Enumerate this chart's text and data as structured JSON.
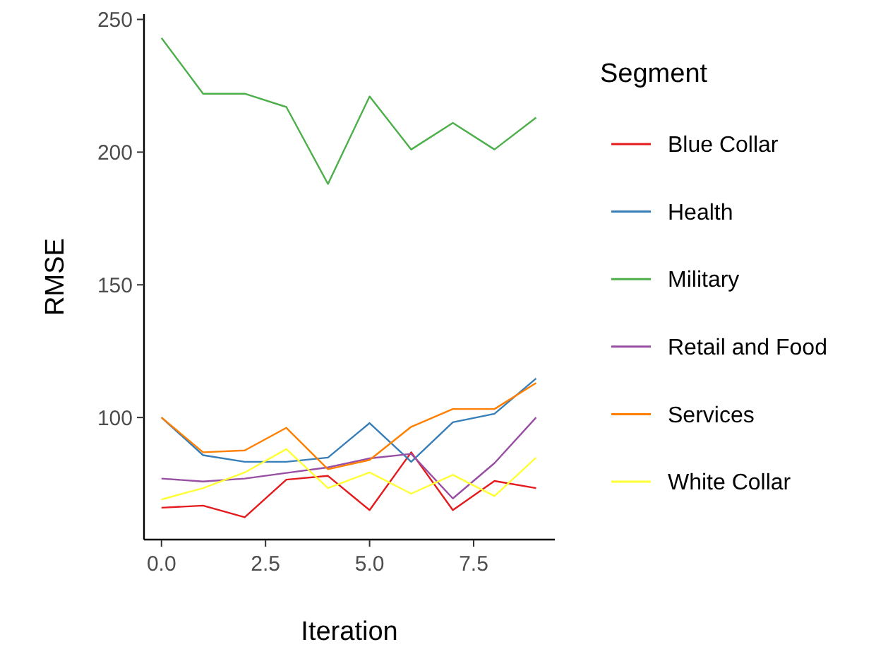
{
  "chart_data": {
    "type": "line",
    "xlabel": "Iteration",
    "ylabel": "RMSE",
    "legend_title": "Segment",
    "legend": "right",
    "grid": false,
    "marker": "none",
    "line_style": "solid",
    "x": [
      0,
      1,
      2,
      3,
      4,
      5,
      6,
      7,
      8,
      9
    ],
    "xlim": [
      -0.42,
      9.45
    ],
    "xticks": [
      {
        "value": 0,
        "label": "0.0"
      },
      {
        "value": 2.5,
        "label": "2.5"
      },
      {
        "value": 5,
        "label": "5.0"
      },
      {
        "value": 7.5,
        "label": "7.5"
      }
    ],
    "ylim": [
      54,
      252
    ],
    "yticks": [
      100,
      150,
      200,
      250
    ],
    "series": [
      {
        "name": "Blue Collar",
        "color": "#e41a1c",
        "values": [
          66,
          66.8,
          62.4,
          76.6,
          78,
          65.1,
          86.9,
          65.1,
          76.1,
          73.4
        ]
      },
      {
        "name": "Health",
        "color": "#377eb8",
        "values": [
          100,
          85.8,
          83.3,
          83.3,
          84.9,
          97.9,
          83.3,
          98.2,
          101.4,
          114.7
        ]
      },
      {
        "name": "Military",
        "color": "#4daf4a",
        "values": [
          243,
          222,
          222,
          217,
          188,
          221,
          201,
          211,
          201,
          213
        ]
      },
      {
        "name": "Retail and Food",
        "color": "#984ea3",
        "values": [
          77,
          75.9,
          77,
          79.1,
          81.2,
          84.6,
          86.3,
          69.5,
          82.8,
          100
        ]
      },
      {
        "name": "Services",
        "color": "#ff7f00",
        "values": [
          100,
          86.9,
          87.6,
          96.1,
          80.5,
          84,
          96.5,
          103.2,
          103.2,
          113
        ]
      },
      {
        "name": "White Collar",
        "color": "#ffff33",
        "values": [
          69.1,
          73.4,
          79.3,
          88.1,
          73.4,
          79.3,
          71.3,
          78.4,
          70.4,
          84.9
        ]
      }
    ]
  }
}
